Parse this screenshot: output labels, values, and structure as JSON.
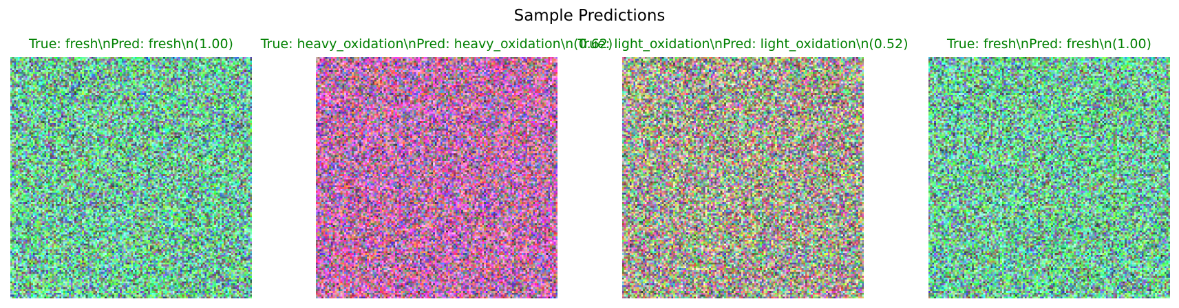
{
  "chart_data": {
    "type": "image_grid",
    "title": "Sample Predictions",
    "title_color": "#000000",
    "label_color": "#008000",
    "axes": "off",
    "panels": [
      {
        "title": "True: fresh\\nPred: fresh\\n(1.00)",
        "true_label": "fresh",
        "pred_label": "fresh",
        "confidence": 1.0,
        "image": "random-noise-green-dominant"
      },
      {
        "title": "True: heavy_oxidation\\nPred: heavy_oxidation\\n(0.62)",
        "true_label": "heavy_oxidation",
        "pred_label": "heavy_oxidation",
        "confidence": 0.62,
        "image": "random-noise-red-magenta-dominant"
      },
      {
        "title": "True: light_oxidation\\nPred: light_oxidation\\n(0.52)",
        "true_label": "light_oxidation",
        "pred_label": "light_oxidation",
        "confidence": 0.52,
        "image": "random-noise-mixed"
      },
      {
        "title": "True: fresh\\nPred: fresh\\n(1.00)",
        "true_label": "fresh",
        "pred_label": "fresh",
        "confidence": 1.0,
        "image": "random-noise-green-dominant"
      }
    ]
  }
}
